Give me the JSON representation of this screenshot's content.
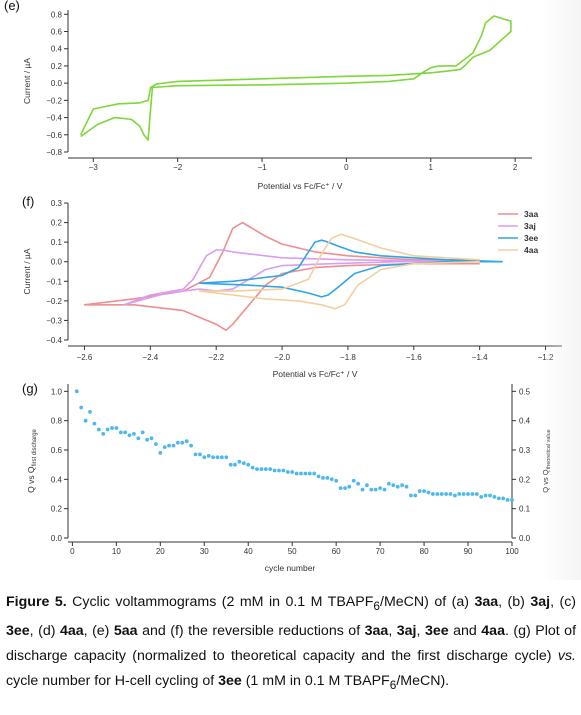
{
  "charts": [
    {
      "label": "(e)",
      "type": "line",
      "xlabel": "Potential vs Fc/Fc⁺ / V",
      "ylabel": "Current / µA",
      "xlim": [
        -3.3,
        2.2
      ],
      "ylim": [
        -0.8,
        0.85
      ],
      "xticks": [
        -3,
        -2,
        -1,
        0,
        1,
        2
      ],
      "xtick_labels": [
        "−3",
        "−2",
        "−1",
        "0",
        "1",
        "2"
      ],
      "yticks": [
        -0.8,
        -0.6,
        -0.4,
        -0.2,
        0.0,
        0.2,
        0.4,
        0.6,
        0.8
      ],
      "ytick_labels": [
        "−0.8",
        "−0.6",
        "−0.4",
        "−0.2",
        "0.0",
        "0.2",
        "0.4",
        "0.6",
        "0.8"
      ],
      "series": [
        {
          "color": "#7fd63a",
          "x": [
            -3.15,
            -2.95,
            -2.75,
            -2.55,
            -2.45,
            -2.4,
            -2.35,
            -2.3,
            -2.0,
            -1.0,
            0.0,
            0.5,
            0.8,
            0.9,
            1.0,
            1.1,
            1.3,
            1.5,
            1.6,
            1.65,
            1.75,
            1.95,
            1.95,
            1.7,
            1.5,
            1.4,
            1.35,
            1.2,
            1.0,
            0.5,
            0.0,
            -1.0,
            -2.0,
            -2.25,
            -2.32,
            -2.35,
            -2.45,
            -2.7,
            -3.0,
            -3.15
          ],
          "y": [
            -0.62,
            -0.48,
            -0.4,
            -0.42,
            -0.5,
            -0.6,
            -0.66,
            -0.05,
            -0.03,
            -0.02,
            0.0,
            0.02,
            0.05,
            0.12,
            0.18,
            0.2,
            0.2,
            0.35,
            0.55,
            0.7,
            0.78,
            0.72,
            0.6,
            0.38,
            0.3,
            0.2,
            0.16,
            0.14,
            0.12,
            0.09,
            0.08,
            0.05,
            0.02,
            -0.01,
            -0.05,
            -0.2,
            -0.23,
            -0.24,
            -0.3,
            -0.6
          ]
        }
      ]
    },
    {
      "label": "(f)",
      "type": "line",
      "xlabel": "Potential vs Fc/Fc⁺ / V",
      "ylabel": "Current / µA",
      "xlim": [
        -2.65,
        -1.15
      ],
      "ylim": [
        -0.4,
        0.3
      ],
      "xticks": [
        -2.6,
        -2.4,
        -2.2,
        -2.0,
        -1.8,
        -1.6,
        -1.4,
        -1.2
      ],
      "xtick_labels": [
        "−2.6",
        "−2.4",
        "−2.2",
        "−2.0",
        "−1.8",
        "−1.6",
        "−1.4",
        "−1.2"
      ],
      "yticks": [
        -0.4,
        -0.3,
        -0.2,
        -0.1,
        0.0,
        0.1,
        0.2,
        0.3
      ],
      "ytick_labels": [
        "−0.4",
        "−0.3",
        "−0.2",
        "−0.1",
        "0.0",
        "0.1",
        "0.2",
        "0.3"
      ],
      "legend": "top-right",
      "series": [
        {
          "name": "3aa",
          "color": "#ee8e8e",
          "x": [
            -1.4,
            -1.6,
            -1.8,
            -1.9,
            -2.0,
            -2.05,
            -2.1,
            -2.15,
            -2.17,
            -2.2,
            -2.3,
            -2.45,
            -2.6,
            -2.45,
            -2.3,
            -2.22,
            -2.18,
            -2.15,
            -2.12,
            -2.1,
            -2.05,
            -2.0,
            -1.9,
            -1.8,
            -1.6,
            -1.4
          ],
          "y": [
            -0.01,
            -0.01,
            -0.02,
            -0.03,
            -0.06,
            -0.12,
            -0.22,
            -0.32,
            -0.35,
            -0.32,
            -0.25,
            -0.22,
            -0.22,
            -0.19,
            -0.15,
            -0.08,
            0.05,
            0.17,
            0.2,
            0.18,
            0.13,
            0.09,
            0.05,
            0.03,
            0.01,
            0.01
          ]
        },
        {
          "name": "3aj",
          "color": "#d99ef0",
          "x": [
            -1.45,
            -1.65,
            -1.85,
            -2.0,
            -2.05,
            -2.1,
            -2.15,
            -2.2,
            -2.25,
            -2.35,
            -2.48,
            -2.4,
            -2.3,
            -2.27,
            -2.23,
            -2.2,
            -2.18,
            -2.15,
            -2.1,
            -2.0,
            -1.8,
            -1.45
          ],
          "y": [
            0.0,
            0.0,
            -0.01,
            -0.02,
            -0.04,
            -0.09,
            -0.14,
            -0.15,
            -0.14,
            -0.16,
            -0.22,
            -0.17,
            -0.14,
            -0.09,
            0.03,
            0.06,
            0.06,
            0.05,
            0.04,
            0.02,
            0.01,
            0.0
          ]
        },
        {
          "name": "3ee",
          "color": "#2ea6e6",
          "x": [
            -1.33,
            -1.5,
            -1.7,
            -1.78,
            -1.83,
            -1.86,
            -1.88,
            -1.92,
            -2.0,
            -2.1,
            -2.25,
            -2.15,
            -2.0,
            -1.95,
            -1.92,
            -1.9,
            -1.88,
            -1.86,
            -1.83,
            -1.78,
            -1.7,
            -1.5,
            -1.33
          ],
          "y": [
            0.0,
            0.0,
            -0.02,
            -0.06,
            -0.13,
            -0.17,
            -0.18,
            -0.16,
            -0.13,
            -0.12,
            -0.11,
            -0.1,
            -0.07,
            -0.03,
            0.05,
            0.1,
            0.11,
            0.1,
            0.08,
            0.05,
            0.03,
            0.01,
            0.0
          ]
        },
        {
          "name": "4aa",
          "color": "#f3cfa0",
          "x": [
            -1.4,
            -1.6,
            -1.7,
            -1.77,
            -1.81,
            -1.84,
            -1.88,
            -1.95,
            -2.05,
            -2.15,
            -2.25,
            -2.15,
            -2.0,
            -1.92,
            -1.88,
            -1.85,
            -1.82,
            -1.8,
            -1.75,
            -1.7,
            -1.6,
            -1.4
          ],
          "y": [
            0.0,
            -0.01,
            -0.04,
            -0.12,
            -0.22,
            -0.24,
            -0.22,
            -0.2,
            -0.19,
            -0.17,
            -0.15,
            -0.15,
            -0.14,
            -0.09,
            0.04,
            0.12,
            0.14,
            0.13,
            0.1,
            0.07,
            0.03,
            0.01
          ]
        }
      ]
    },
    {
      "label": "(g)",
      "type": "scatter",
      "xlabel": "cycle number",
      "ylabel": "Q vs Q_first discharge",
      "ylabel2": "Q vs Q_theoretical value",
      "xlim": [
        -1,
        100
      ],
      "ylim": [
        0.0,
        1.05
      ],
      "y2lim": [
        0.0,
        0.525
      ],
      "xticks": [
        0,
        10,
        20,
        30,
        40,
        50,
        60,
        70,
        80,
        90,
        100
      ],
      "xtick_labels": [
        "0",
        "10",
        "20",
        "30",
        "40",
        "50",
        "60",
        "70",
        "80",
        "90",
        "100"
      ],
      "yticks": [
        0.0,
        0.2,
        0.4,
        0.6,
        0.8,
        1.0
      ],
      "ytick_labels": [
        "0.0",
        "0.2",
        "0.4",
        "0.6",
        "0.8",
        "1.0"
      ],
      "y2ticks": [
        0.0,
        0.1,
        0.2,
        0.3,
        0.4,
        0.5
      ],
      "y2tick_labels": [
        "0.0",
        "0.1",
        "0.2",
        "0.3",
        "0.4",
        "0.5"
      ],
      "series": [
        {
          "color": "#4db8ee",
          "x": [
            1,
            2,
            3,
            4,
            5,
            6,
            7,
            8,
            9,
            10,
            11,
            12,
            13,
            14,
            15,
            16,
            17,
            18,
            19,
            20,
            21,
            22,
            23,
            24,
            25,
            26,
            27,
            28,
            29,
            30,
            31,
            32,
            33,
            34,
            35,
            36,
            37,
            38,
            39,
            40,
            41,
            42,
            43,
            44,
            45,
            46,
            47,
            48,
            49,
            50,
            51,
            52,
            53,
            54,
            55,
            56,
            57,
            58,
            59,
            60,
            61,
            62,
            63,
            64,
            65,
            66,
            67,
            68,
            69,
            70,
            71,
            72,
            73,
            74,
            75,
            76,
            77,
            78,
            79,
            80,
            81,
            82,
            83,
            84,
            85,
            86,
            87,
            88,
            89,
            90,
            91,
            92,
            93,
            94,
            95,
            96,
            97,
            98,
            99,
            100
          ],
          "y": [
            1.0,
            0.89,
            0.8,
            0.86,
            0.78,
            0.74,
            0.71,
            0.74,
            0.75,
            0.75,
            0.72,
            0.72,
            0.7,
            0.71,
            0.68,
            0.72,
            0.67,
            0.68,
            0.64,
            0.58,
            0.62,
            0.63,
            0.63,
            0.65,
            0.65,
            0.66,
            0.63,
            0.57,
            0.57,
            0.55,
            0.56,
            0.55,
            0.55,
            0.55,
            0.55,
            0.5,
            0.5,
            0.52,
            0.51,
            0.5,
            0.48,
            0.47,
            0.47,
            0.47,
            0.47,
            0.46,
            0.46,
            0.46,
            0.45,
            0.45,
            0.44,
            0.44,
            0.44,
            0.44,
            0.44,
            0.42,
            0.41,
            0.41,
            0.4,
            0.39,
            0.34,
            0.34,
            0.35,
            0.39,
            0.37,
            0.33,
            0.36,
            0.33,
            0.33,
            0.34,
            0.33,
            0.37,
            0.36,
            0.35,
            0.36,
            0.35,
            0.29,
            0.29,
            0.32,
            0.32,
            0.31,
            0.3,
            0.3,
            0.3,
            0.3,
            0.3,
            0.29,
            0.3,
            0.3,
            0.3,
            0.3,
            0.3,
            0.28,
            0.29,
            0.29,
            0.28,
            0.27,
            0.27,
            0.26,
            0.26
          ]
        }
      ]
    }
  ],
  "caption": {
    "figure_label": "Figure 5.",
    "parts": [
      {
        "t": " Cyclic voltammograms (2 mM in 0.1 M TBAPF",
        "b": false
      },
      {
        "t": "6",
        "b": false,
        "sub": true
      },
      {
        "t": "/MeCN) of (a) ",
        "b": false
      },
      {
        "t": "3aa",
        "b": true
      },
      {
        "t": ", (b) ",
        "b": false
      },
      {
        "t": "3aj",
        "b": true
      },
      {
        "t": ", (c) ",
        "b": false
      },
      {
        "t": "3ee",
        "b": true
      },
      {
        "t": ", (d) ",
        "b": false
      },
      {
        "t": "4aa",
        "b": true
      },
      {
        "t": ", (e) ",
        "b": false
      },
      {
        "t": "5aa",
        "b": true
      },
      {
        "t": " and (f) the reversible reductions of ",
        "b": false
      },
      {
        "t": "3aa",
        "b": true
      },
      {
        "t": ", ",
        "b": false
      },
      {
        "t": "3aj",
        "b": true
      },
      {
        "t": ", ",
        "b": false
      },
      {
        "t": "3ee",
        "b": true
      },
      {
        "t": " and ",
        "b": false
      },
      {
        "t": "4aa",
        "b": true
      },
      {
        "t": ". (g) Plot of discharge capacity (normalized to theoretical capacity and the first discharge cycle) ",
        "b": false
      },
      {
        "t": "vs.",
        "b": false,
        "i": true
      },
      {
        "t": " cycle number for H-cell cycling of ",
        "b": false
      },
      {
        "t": "3ee",
        "b": true
      },
      {
        "t": " (1 mM in 0.1 M TBAPF",
        "b": false
      },
      {
        "t": "6",
        "b": false,
        "sub": true
      },
      {
        "t": "/MeCN).",
        "b": false
      }
    ]
  }
}
